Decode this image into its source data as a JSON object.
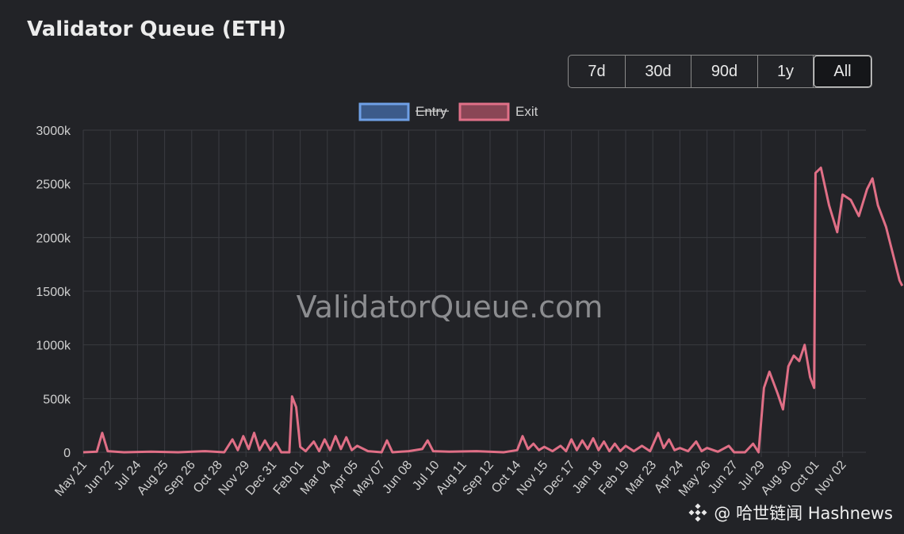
{
  "header": {
    "title": "Validator Queue (ETH)"
  },
  "range_buttons": [
    {
      "label": "7d",
      "active": false
    },
    {
      "label": "30d",
      "active": false
    },
    {
      "label": "90d",
      "active": false
    },
    {
      "label": "1y",
      "active": false
    },
    {
      "label": "All",
      "active": true
    }
  ],
  "watermark": "ValidatorQueue.com",
  "footer_watermark": {
    "text": "@ 哈世链闻 Hashnews",
    "icon": "binance-logo-icon"
  },
  "colors": {
    "background": "#222327",
    "grid": "#3a3b40",
    "entry_fill": "#3c5b8a",
    "entry_border": "#6fa0e6",
    "exit_fill": "#8a4656",
    "exit_border": "#e07088",
    "exit_line": "#e06f86"
  },
  "chart_data": {
    "type": "line",
    "title": "Validator Queue (ETH)",
    "legend": {
      "placement": "top-center",
      "entries": [
        {
          "name": "Entry",
          "hidden": true
        },
        {
          "name": "Exit",
          "hidden": false
        }
      ]
    },
    "ylim": [
      0,
      3000
    ],
    "y_ticks": [
      "3000k",
      "2500k",
      "2000k",
      "1500k",
      "1000k",
      "500k",
      "0"
    ],
    "x_tick_labels": [
      "May 21",
      "Jun 22",
      "Jul 24",
      "Aug 25",
      "Sep 26",
      "Oct 28",
      "Nov 29",
      "Dec 31",
      "Feb 01",
      "Mar 04",
      "Apr 05",
      "May 07",
      "Jun 08",
      "Jul 10",
      "Aug 11",
      "Sep 12",
      "Oct 14",
      "Nov 15",
      "Dec 17",
      "Jan 18",
      "Feb 19",
      "Mar 23",
      "Apr 24",
      "May 26",
      "Jun 27",
      "Jul 29",
      "Aug 30",
      "Oct 01",
      "Nov 02"
    ],
    "grid": true,
    "series": [
      {
        "name": "Exit",
        "points": [
          [
            0,
            0
          ],
          [
            0.5,
            5
          ],
          [
            0.7,
            180
          ],
          [
            0.9,
            10
          ],
          [
            1.5,
            0
          ],
          [
            2.5,
            5
          ],
          [
            3.5,
            0
          ],
          [
            4.5,
            10
          ],
          [
            5.2,
            0
          ],
          [
            5.5,
            120
          ],
          [
            5.7,
            20
          ],
          [
            5.9,
            150
          ],
          [
            6.1,
            30
          ],
          [
            6.3,
            180
          ],
          [
            6.5,
            20
          ],
          [
            6.7,
            110
          ],
          [
            6.9,
            20
          ],
          [
            7.1,
            90
          ],
          [
            7.3,
            0
          ],
          [
            7.6,
            0
          ],
          [
            7.7,
            520
          ],
          [
            7.85,
            420
          ],
          [
            8.0,
            50
          ],
          [
            8.2,
            10
          ],
          [
            8.5,
            100
          ],
          [
            8.7,
            10
          ],
          [
            8.9,
            120
          ],
          [
            9.1,
            20
          ],
          [
            9.3,
            150
          ],
          [
            9.5,
            30
          ],
          [
            9.7,
            140
          ],
          [
            9.9,
            20
          ],
          [
            10.1,
            60
          ],
          [
            10.5,
            10
          ],
          [
            11.0,
            0
          ],
          [
            11.2,
            110
          ],
          [
            11.4,
            0
          ],
          [
            12.0,
            10
          ],
          [
            12.5,
            30
          ],
          [
            12.7,
            110
          ],
          [
            12.9,
            10
          ],
          [
            13.5,
            5
          ],
          [
            14.5,
            10
          ],
          [
            15.5,
            0
          ],
          [
            16.0,
            20
          ],
          [
            16.2,
            150
          ],
          [
            16.4,
            30
          ],
          [
            16.6,
            80
          ],
          [
            16.8,
            20
          ],
          [
            17.0,
            50
          ],
          [
            17.3,
            10
          ],
          [
            17.6,
            60
          ],
          [
            17.8,
            10
          ],
          [
            18.0,
            120
          ],
          [
            18.2,
            20
          ],
          [
            18.4,
            110
          ],
          [
            18.6,
            30
          ],
          [
            18.8,
            130
          ],
          [
            19.0,
            20
          ],
          [
            19.2,
            100
          ],
          [
            19.4,
            10
          ],
          [
            19.6,
            80
          ],
          [
            19.8,
            10
          ],
          [
            20.0,
            60
          ],
          [
            20.3,
            10
          ],
          [
            20.6,
            60
          ],
          [
            20.9,
            10
          ],
          [
            21.2,
            180
          ],
          [
            21.4,
            40
          ],
          [
            21.6,
            120
          ],
          [
            21.8,
            20
          ],
          [
            22.0,
            40
          ],
          [
            22.3,
            10
          ],
          [
            22.6,
            100
          ],
          [
            22.8,
            10
          ],
          [
            23.0,
            40
          ],
          [
            23.4,
            5
          ],
          [
            23.8,
            60
          ],
          [
            24.0,
            0
          ],
          [
            24.4,
            0
          ],
          [
            24.7,
            80
          ],
          [
            24.9,
            0
          ],
          [
            25.1,
            600
          ],
          [
            25.3,
            750
          ],
          [
            25.6,
            550
          ],
          [
            25.8,
            400
          ],
          [
            26.0,
            800
          ],
          [
            26.2,
            900
          ],
          [
            26.4,
            850
          ],
          [
            26.6,
            1000
          ],
          [
            26.8,
            700
          ],
          [
            26.95,
            600
          ],
          [
            27.0,
            2600
          ],
          [
            27.2,
            2650
          ],
          [
            27.5,
            2300
          ],
          [
            27.8,
            2050
          ],
          [
            28.0,
            2400
          ],
          [
            28.3,
            2350
          ],
          [
            28.6,
            2200
          ],
          [
            28.9,
            2450
          ],
          [
            29.1,
            2550
          ],
          [
            29.3,
            2300
          ],
          [
            29.6,
            2100
          ],
          [
            29.9,
            1800
          ],
          [
            30.1,
            1600
          ],
          [
            30.2,
            1550
          ]
        ]
      }
    ]
  }
}
